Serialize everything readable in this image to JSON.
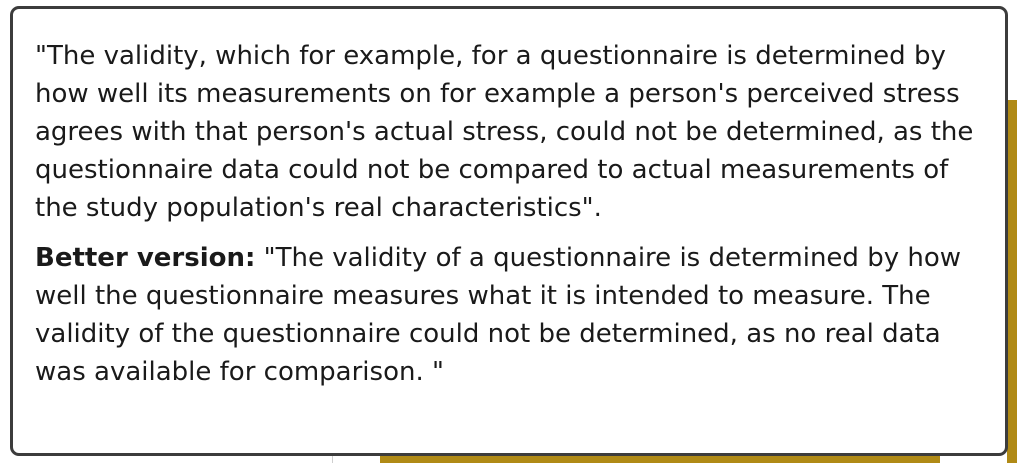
{
  "popup": {
    "quote": "\"The validity, which for example, for a questionnaire is determined by how well its measurements on for example a person's perceived stress agrees with that person's actual stress, could not be determined, as the questionnaire data could not be compared to actual measurements of the study population's real characteristics\".",
    "better_label": "Better version:",
    "better_text": " \"The validity of a questionnaire is determined by how well the questionnaire measures what it is intended to measure. The validity of the questionnaire could not be determined, as no real data was available for comparison. \""
  }
}
